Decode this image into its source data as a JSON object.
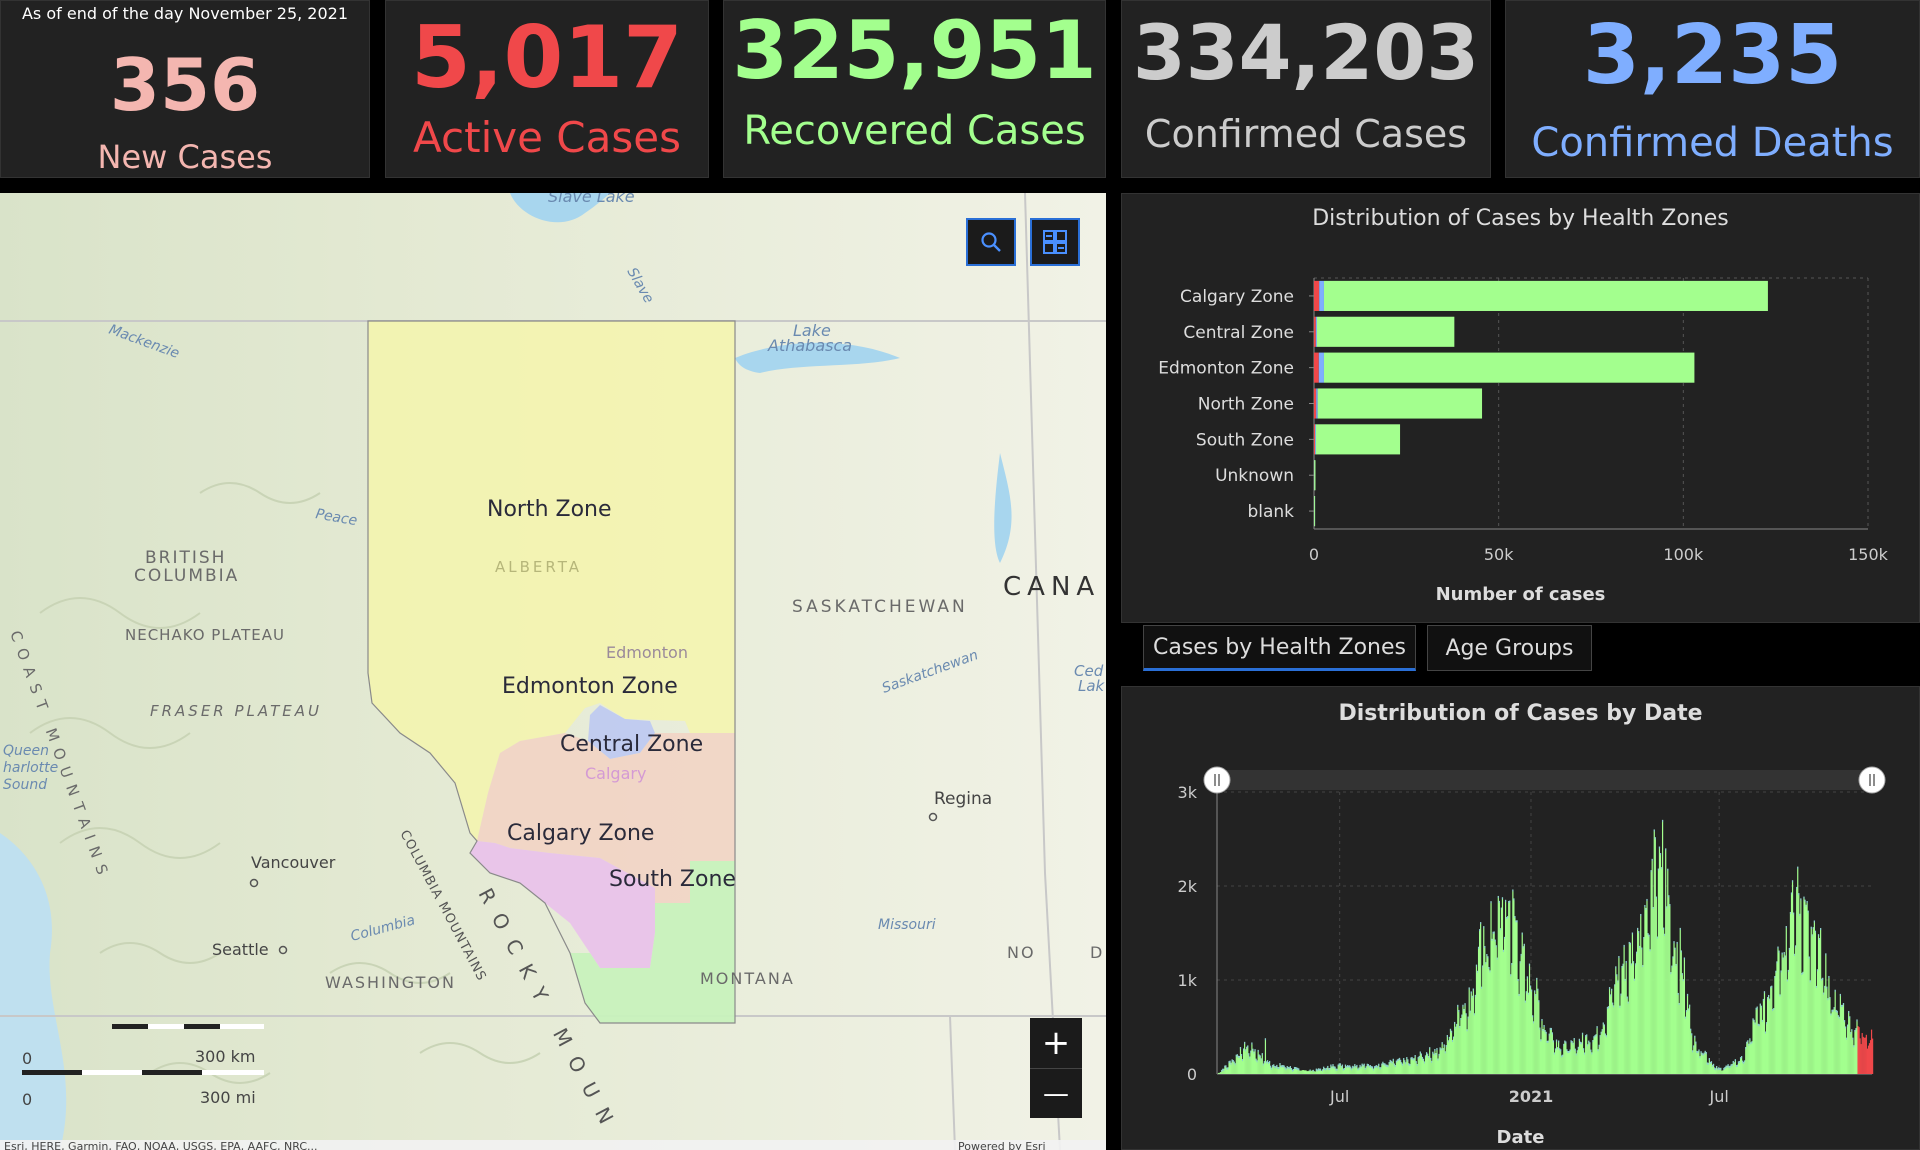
{
  "header": {
    "date_line": "As of end of the day November 25, 2021",
    "cards": [
      {
        "value": "356",
        "label": "New Cases",
        "color": "#f4b6b0"
      },
      {
        "value": "5,017",
        "label": "Active Cases",
        "color": "#f0484a"
      },
      {
        "value": "325,951",
        "label": "Recovered Cases",
        "color": "#a3ff8e"
      },
      {
        "value": "334,203",
        "label": "Confirmed Cases",
        "color": "#cccccc"
      },
      {
        "value": "3,235",
        "label": "Confirmed Deaths",
        "color": "#7faeff"
      }
    ]
  },
  "map": {
    "zones": {
      "north": "North Zone",
      "edmonton": "Edmonton Zone",
      "central": "Central Zone",
      "calgary": "Calgary Zone",
      "south": "South Zone"
    },
    "places": {
      "slave_lake": "Slave Lake",
      "slave": "Slave",
      "mackenzie": "Mackenzie",
      "lake_athabasca": "Lake",
      "lake_athabasca2": "Athabasca",
      "peace": "Peace",
      "bc1": "BRITISH",
      "bc2": "COLUMBIA",
      "alberta": "ALBERTA",
      "saskatchewan": "SASKATCHEWAN",
      "canada": "CANA",
      "nechako": "NECHAKO PLATEAU",
      "fraser": "FRASER PLATEAU",
      "queen1": "Queen",
      "queen2": "harlotte",
      "queen3": "Sound",
      "coast": "COAST MOUNTAINS",
      "columbia_mtn": "COLUMBIA MOUNTAINS",
      "rocky": "ROCKY MOUN",
      "edmonton_city": "Edmonton",
      "calgary_city": "Calgary",
      "saskatchewan_river": "Saskatchewan",
      "regina": "Regina",
      "vancouver": "Vancouver",
      "seattle": "Seattle",
      "columbia": "Columbia",
      "washington": "WASHINGTON",
      "montana": "MONTANA",
      "missouri": "Missouri",
      "nd": "NO",
      "nd2": "D",
      "cedar1": "Ced",
      "cedar2": "Lak"
    },
    "scale": {
      "zero_km": "0",
      "km": "300 km",
      "zero_mi": "0",
      "mi": "300 mi"
    },
    "attribution_left": "Esri, HERE, Garmin, FAO, NOAA, USGS, EPA, AAFC, NRC...",
    "attribution_right": "Powered by Esri",
    "buttons": {
      "search_icon": "search-icon",
      "basemap_icon": "basemap-gallery-icon",
      "zoom_in": "+",
      "zoom_out": "—"
    }
  },
  "zones_chart": {
    "title": "Distribution of Cases by Health Zones",
    "xlabel": "Number of cases",
    "chart_data": {
      "type": "bar",
      "orientation": "horizontal",
      "stacked": true,
      "title": "Distribution of Cases by Health Zones",
      "xlabel": "Number of cases",
      "ylabel": "",
      "categories": [
        "Calgary Zone",
        "Central Zone",
        "Edmonton Zone",
        "North Zone",
        "South Zone",
        "Unknown",
        "blank"
      ],
      "series": [
        {
          "color": "#f0484a",
          "values": [
            1400,
            500,
            1300,
            600,
            300,
            20,
            10
          ]
        },
        {
          "color": "#7faeff",
          "values": [
            1300,
            300,
            1400,
            400,
            200,
            30,
            20
          ]
        },
        {
          "color": "#a3ff8e",
          "values": [
            120200,
            37200,
            100300,
            44500,
            22800,
            350,
            170
          ]
        }
      ],
      "xlim": [
        0,
        150000
      ],
      "xticks": [
        0,
        50000,
        100000,
        150000
      ],
      "xtick_labels": [
        "0",
        "50k",
        "100k",
        "150k"
      ],
      "grid": true
    }
  },
  "tabs": [
    {
      "label": "Cases by Health Zones",
      "active": true
    },
    {
      "label": "Age Groups",
      "active": false
    }
  ],
  "date_chart": {
    "title": "Distribution of Cases by Date",
    "xlabel": "Date",
    "chart_data": {
      "type": "bar",
      "stacked": true,
      "title": "Distribution of Cases by Date",
      "xlabel": "Date",
      "x_range": [
        "2020-03-05",
        "2021-11-25"
      ],
      "ylim": [
        0,
        3000
      ],
      "yticks": [
        0,
        1000,
        2000,
        3000
      ],
      "ytick_labels": [
        "0",
        "1k",
        "2k",
        "3k"
      ],
      "xtick_labels": [
        "Jul",
        "2021",
        "Jul"
      ],
      "xticks": [
        "2020-07-01",
        "2021-01-01",
        "2021-07-01"
      ],
      "series_colors": {
        "recovered": "#a3ff8e",
        "active": "#f0484a",
        "deaths": "#7faeff"
      },
      "daily_series": {
        "dates": [
          "2020-04-01",
          "2020-05-01",
          "2020-06-01",
          "2020-07-01",
          "2020-08-01",
          "2020-09-01",
          "2020-10-01",
          "2020-11-01",
          "2020-11-15",
          "2020-12-01",
          "2020-12-10",
          "2021-01-01",
          "2021-01-15",
          "2021-02-01",
          "2021-03-01",
          "2021-04-01",
          "2021-04-20",
          "2021-05-05",
          "2021-05-20",
          "2021-06-10",
          "2021-07-01",
          "2021-07-20",
          "2021-08-10",
          "2021-09-01",
          "2021-09-15",
          "2021-10-01",
          "2021-10-20",
          "2021-11-10",
          "2021-11-25"
        ],
        "values": [
          300,
          100,
          40,
          100,
          100,
          150,
          250,
          800,
          1400,
          1700,
          1800,
          1000,
          500,
          300,
          400,
          1200,
          1800,
          2400,
          1400,
          300,
          60,
          150,
          700,
          1500,
          1900,
          1400,
          800,
          500,
          400
        ]
      },
      "range_slider": true
    }
  }
}
